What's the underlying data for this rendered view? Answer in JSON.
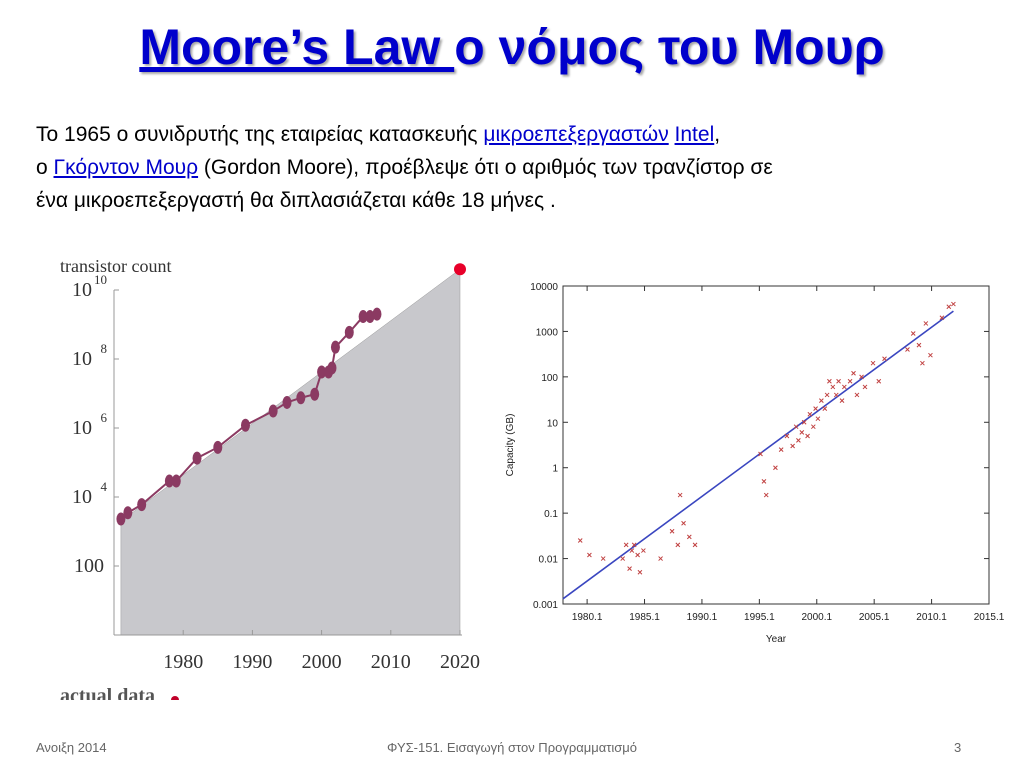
{
  "slide": {
    "title_link": "Moore’s Law ",
    "title_rest": " ο νόμος του Μουρ",
    "para1_start": "Το 1965 ο συνιδρυτής της εταιρείας κατασκευής ",
    "para1_link1": "μικροεπεξεργαστών",
    "para1_link2": "Intel",
    "para1_end": ",",
    "para2_start": "ο ",
    "para2_link": "Γκόρντον Μουρ",
    "para2_end": " (Gordon Moore), προέβλεψε ότι ο αριθμός των τρανζίστορ σε",
    "para3": "ένα μικροεπεξεργαστή θα διπλασιάζεται κάθε 18 μήνες ."
  },
  "footer": {
    "left": "Ανοιξη 2014",
    "center": "ΦΥΣ-151. Εισαγωγή στον Προγραμματισμό",
    "right": "3"
  },
  "chart_data": [
    {
      "type": "line",
      "ylabel": "transistor count",
      "xlim": [
        1970,
        2020
      ],
      "ylim": [
        1,
        10000000000
      ],
      "yscale": "log",
      "xticks": [
        "1980",
        "1990",
        "2000",
        "2010",
        "2020"
      ],
      "yticks": [
        "100",
        "10",
        "10",
        "10",
        "10"
      ],
      "ytick_exponents": [
        "",
        "4",
        "6",
        "8",
        "10"
      ],
      "series": [
        {
          "x": [
            1971,
            1972,
            1974,
            1978,
            1979,
            1982,
            1985,
            1989,
            1993,
            1995,
            1997,
            1999,
            2000,
            2001,
            2001.5,
            2002,
            2004,
            2006,
            2007,
            2008
          ],
          "y": [
            2300,
            3500,
            6000,
            29000,
            29000,
            134000,
            275000,
            1200000,
            3100000,
            5500000,
            7500000,
            9500000,
            42000000,
            42000000,
            55000000,
            220000000,
            592000000,
            1700000000,
            1700000000,
            2000000000
          ]
        }
      ],
      "trend_band": {
        "x": [
          1971,
          2020
        ],
        "y": [
          2000,
          40000000000
        ]
      },
      "projection_point": {
        "x": 2020,
        "y": 40000000000
      },
      "legend_fragment": "actual  data",
      "colors": {
        "line": "#8b3a62",
        "marker": "#8b3a62",
        "band": "#c8c8cc",
        "projection": "#e8002a"
      }
    },
    {
      "type": "scatter",
      "xlabel": "Year",
      "ylabel": "Capacity (GB)",
      "xlim": [
        1978,
        2015.1
      ],
      "ylim": [
        0.001,
        10000
      ],
      "yscale": "log",
      "xticks": [
        "1980.1",
        "1985.1",
        "1990.1",
        "1995.1",
        "2000.1",
        "2005.1",
        "2010.1",
        "2015.1"
      ],
      "xtick_values": [
        1980.1,
        1985.1,
        1990.1,
        1995.1,
        2000.1,
        2005.1,
        2010.1,
        2015.1
      ],
      "yticks": [
        "0.001",
        "0.01",
        "0.1",
        "1",
        "10",
        "100",
        "1000",
        "10000"
      ],
      "fit_line": {
        "x": [
          1978,
          2012
        ],
        "y": [
          0.0013,
          2800
        ]
      },
      "points": [
        {
          "x": 1979.5,
          "y": 0.025
        },
        {
          "x": 1980.3,
          "y": 0.012
        },
        {
          "x": 1981.5,
          "y": 0.01
        },
        {
          "x": 1983.2,
          "y": 0.01
        },
        {
          "x": 1983.5,
          "y": 0.02
        },
        {
          "x": 1983.8,
          "y": 0.006
        },
        {
          "x": 1984,
          "y": 0.015
        },
        {
          "x": 1984.2,
          "y": 0.02
        },
        {
          "x": 1984.5,
          "y": 0.012
        },
        {
          "x": 1984.7,
          "y": 0.005
        },
        {
          "x": 1985,
          "y": 0.015
        },
        {
          "x": 1986.5,
          "y": 0.01
        },
        {
          "x": 1987.5,
          "y": 0.04
        },
        {
          "x": 1988,
          "y": 0.02
        },
        {
          "x": 1988.2,
          "y": 0.25
        },
        {
          "x": 1988.5,
          "y": 0.06
        },
        {
          "x": 1989,
          "y": 0.03
        },
        {
          "x": 1989.5,
          "y": 0.02
        },
        {
          "x": 1995.2,
          "y": 2
        },
        {
          "x": 1995.5,
          "y": 0.5
        },
        {
          "x": 1995.7,
          "y": 0.25
        },
        {
          "x": 1996.5,
          "y": 1
        },
        {
          "x": 1997,
          "y": 2.5
        },
        {
          "x": 1997.5,
          "y": 5
        },
        {
          "x": 1998,
          "y": 3
        },
        {
          "x": 1998.3,
          "y": 8
        },
        {
          "x": 1998.5,
          "y": 4
        },
        {
          "x": 1998.8,
          "y": 6
        },
        {
          "x": 1999,
          "y": 10
        },
        {
          "x": 1999.3,
          "y": 5
        },
        {
          "x": 1999.5,
          "y": 15
        },
        {
          "x": 1999.8,
          "y": 8
        },
        {
          "x": 2000,
          "y": 20
        },
        {
          "x": 2000.2,
          "y": 12
        },
        {
          "x": 2000.5,
          "y": 30
        },
        {
          "x": 2000.8,
          "y": 20
        },
        {
          "x": 2001,
          "y": 40
        },
        {
          "x": 2001.2,
          "y": 80
        },
        {
          "x": 2001.5,
          "y": 60
        },
        {
          "x": 2001.8,
          "y": 40
        },
        {
          "x": 2002,
          "y": 80
        },
        {
          "x": 2002.3,
          "y": 30
        },
        {
          "x": 2002.5,
          "y": 60
        },
        {
          "x": 2003,
          "y": 80
        },
        {
          "x": 2003.3,
          "y": 120
        },
        {
          "x": 2003.6,
          "y": 40
        },
        {
          "x": 2004,
          "y": 100
        },
        {
          "x": 2004.3,
          "y": 60
        },
        {
          "x": 2005,
          "y": 200
        },
        {
          "x": 2005.5,
          "y": 80
        },
        {
          "x": 2006,
          "y": 250
        },
        {
          "x": 2008,
          "y": 400
        },
        {
          "x": 2008.5,
          "y": 900
        },
        {
          "x": 2009,
          "y": 500
        },
        {
          "x": 2009.3,
          "y": 200
        },
        {
          "x": 2009.6,
          "y": 1500
        },
        {
          "x": 2010,
          "y": 300
        },
        {
          "x": 2011,
          "y": 2000
        },
        {
          "x": 2011.6,
          "y": 3500
        },
        {
          "x": 2012,
          "y": 4000
        }
      ],
      "colors": {
        "fit_line": "#3a46c0",
        "points": "#c04040"
      }
    }
  ]
}
